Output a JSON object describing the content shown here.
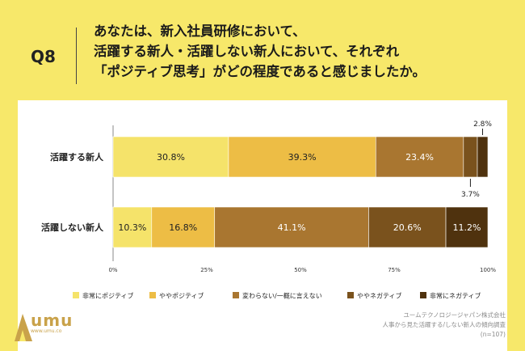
{
  "header": {
    "question_no": "Q8",
    "question_lines": [
      "あなたは、新入社員研修において、",
      "活躍する新人・活躍しない新人において、それぞれ",
      "「ポジティブ思考」がどの程度であると感じましたか。"
    ]
  },
  "chart_data": {
    "type": "bar",
    "orientation": "horizontal-stacked-100",
    "categories": [
      "活躍する新人",
      "活躍しない新人"
    ],
    "series": [
      {
        "name": "非常にポジティブ",
        "color": "#f5e36a",
        "values": [
          30.8,
          10.3
        ]
      },
      {
        "name": "ややポジティブ",
        "color": "#edbd45",
        "values": [
          39.3,
          16.8
        ]
      },
      {
        "name": "変わらない/一概に言えない",
        "color": "#a97630",
        "values": [
          23.4,
          41.1
        ]
      },
      {
        "name": "ややネガティブ",
        "color": "#7a521d",
        "values": [
          3.7,
          20.6
        ]
      },
      {
        "name": "非常にネガティブ",
        "color": "#4f320e",
        "values": [
          2.8,
          11.2
        ]
      }
    ],
    "value_labels": [
      [
        "30.8%",
        "39.3%",
        "23.4%",
        "3.7%",
        "2.8%"
      ],
      [
        "10.3%",
        "16.8%",
        "41.1%",
        "20.6%",
        "11.2%"
      ]
    ],
    "xlim": [
      0,
      100
    ],
    "xticks": [
      "0%",
      "25%",
      "50%",
      "75%",
      "100%"
    ],
    "legend_position": "bottom"
  },
  "footer": {
    "logo_text": "umu",
    "logo_url": "www.umu.co",
    "source_lines": [
      "ユームテクノロジージャパン株式会社",
      "人事から見た活躍する/しない新人の傾向調査",
      "(n=107)"
    ]
  }
}
